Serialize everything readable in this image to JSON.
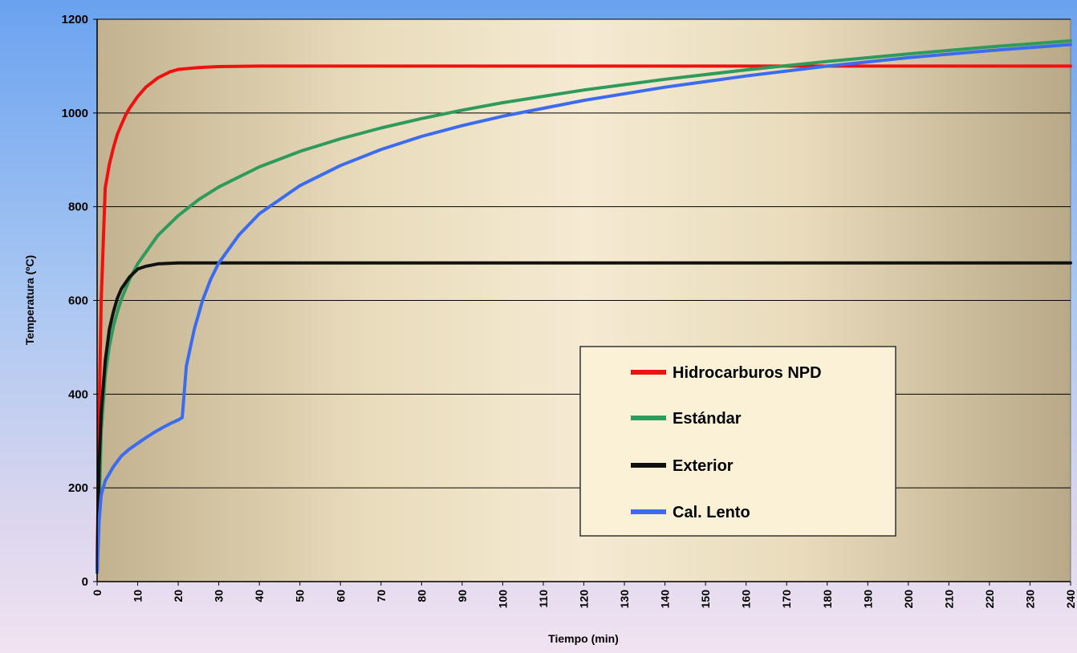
{
  "chart_data": {
    "type": "line",
    "xlabel": "Tiempo (min)",
    "ylabel": "Temperatura (ºC)",
    "xlim": [
      0,
      240
    ],
    "ylim": [
      0,
      1200
    ],
    "x_ticks": [
      0,
      10,
      20,
      30,
      40,
      50,
      60,
      70,
      80,
      90,
      100,
      110,
      120,
      130,
      140,
      150,
      160,
      170,
      180,
      190,
      200,
      210,
      220,
      230,
      240
    ],
    "y_ticks": [
      0,
      200,
      400,
      600,
      800,
      1000,
      1200
    ],
    "grid": "horizontal",
    "legend_position": "center-right",
    "series": [
      {
        "name": "Hidrocarburos NPD",
        "color": "#f01010",
        "x": [
          0,
          0.5,
          1,
          2,
          3,
          4,
          5,
          6,
          7,
          8,
          10,
          12,
          15,
          18,
          20,
          25,
          30,
          40,
          60,
          100,
          240
        ],
        "y": [
          20,
          350,
          600,
          840,
          890,
          925,
          955,
          975,
          995,
          1010,
          1035,
          1055,
          1075,
          1088,
          1093,
          1097,
          1099,
          1100,
          1100,
          1100,
          1100
        ]
      },
      {
        "name": "Estándar",
        "color": "#2e9a5c",
        "x": [
          0,
          0.5,
          1,
          2,
          3,
          4,
          5,
          6,
          8,
          10,
          15,
          20,
          25,
          30,
          40,
          50,
          60,
          70,
          80,
          90,
          100,
          120,
          140,
          160,
          180,
          200,
          220,
          240
        ],
        "y": [
          20,
          150,
          320,
          440,
          502,
          544,
          576,
          603,
          645,
          678,
          739,
          781,
          815,
          842,
          885,
          918,
          945,
          968,
          988,
          1006,
          1022,
          1049,
          1072,
          1092,
          1110,
          1126,
          1141,
          1154
        ]
      },
      {
        "name": "Exterior",
        "color": "#111111",
        "x": [
          0,
          0.5,
          1,
          2,
          3,
          4,
          5,
          6,
          8,
          10,
          12,
          15,
          20,
          25,
          30,
          50,
          100,
          240
        ],
        "y": [
          20,
          250,
          360,
          470,
          538,
          575,
          605,
          625,
          650,
          667,
          673,
          678,
          680,
          680,
          680,
          680,
          680,
          680
        ]
      },
      {
        "name": "Cal. Lento",
        "color": "#3b6bf0",
        "x": [
          0,
          0.5,
          1,
          2,
          4,
          6,
          8,
          10,
          12,
          14,
          16,
          18,
          20,
          21,
          22,
          24,
          26,
          28,
          30,
          35,
          40,
          50,
          60,
          70,
          80,
          90,
          100,
          120,
          140,
          160,
          180,
          200,
          220,
          240
        ],
        "y": [
          20,
          130,
          185,
          215,
          245,
          268,
          283,
          295,
          307,
          318,
          328,
          337,
          345,
          350,
          460,
          540,
          600,
          645,
          680,
          740,
          785,
          845,
          888,
          922,
          950,
          973,
          993,
          1027,
          1055,
          1079,
          1100,
          1118,
          1133,
          1146
        ]
      }
    ]
  }
}
